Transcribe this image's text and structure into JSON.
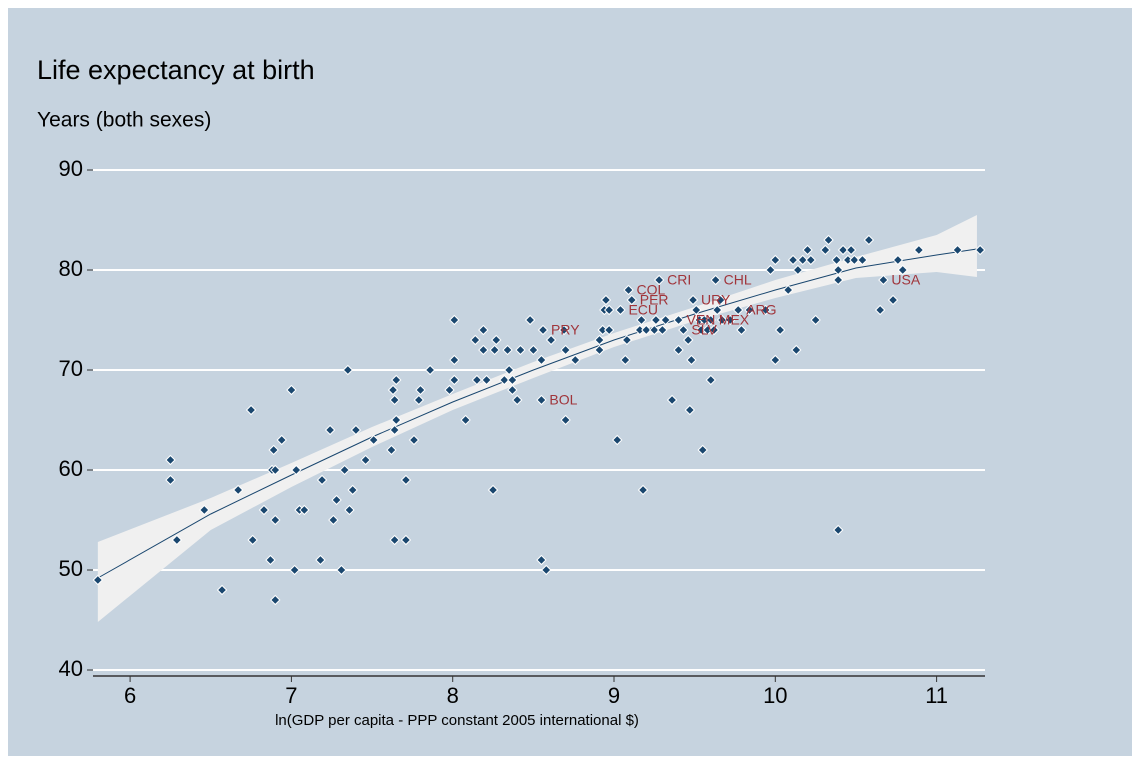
{
  "chart_data": {
    "type": "scatter",
    "title": "Life expectancy at birth",
    "subtitle": "Years (both sexes)",
    "x_label": "ln(GDP per capita - PPP constant 2005 international $)",
    "xlim": [
      5.77,
      11.3
    ],
    "xticks": [
      6,
      7,
      8,
      9,
      10,
      11
    ],
    "ylim": [
      40,
      90
    ],
    "yticks": [
      40,
      50,
      60,
      70,
      80,
      90
    ],
    "grid": true,
    "color": "#1a476f",
    "label_color": "#a0353b",
    "band_color": "#f0f0f0",
    "points": [
      {
        "x": 5.8,
        "y": 49
      },
      {
        "x": 6.25,
        "y": 61
      },
      {
        "x": 6.25,
        "y": 59
      },
      {
        "x": 6.29,
        "y": 53
      },
      {
        "x": 6.46,
        "y": 56
      },
      {
        "x": 6.57,
        "y": 48
      },
      {
        "x": 6.67,
        "y": 58
      },
      {
        "x": 6.75,
        "y": 66
      },
      {
        "x": 6.76,
        "y": 53
      },
      {
        "x": 6.83,
        "y": 56
      },
      {
        "x": 6.87,
        "y": 51
      },
      {
        "x": 6.89,
        "y": 62
      },
      {
        "x": 6.88,
        "y": 60
      },
      {
        "x": 6.9,
        "y": 60
      },
      {
        "x": 6.9,
        "y": 55
      },
      {
        "x": 6.9,
        "y": 47
      },
      {
        "x": 6.94,
        "y": 63
      },
      {
        "x": 7.0,
        "y": 68
      },
      {
        "x": 7.02,
        "y": 50
      },
      {
        "x": 7.03,
        "y": 60
      },
      {
        "x": 7.05,
        "y": 56
      },
      {
        "x": 7.08,
        "y": 56
      },
      {
        "x": 7.19,
        "y": 59
      },
      {
        "x": 7.18,
        "y": 51
      },
      {
        "x": 7.24,
        "y": 64
      },
      {
        "x": 7.26,
        "y": 55
      },
      {
        "x": 7.28,
        "y": 57
      },
      {
        "x": 7.31,
        "y": 50
      },
      {
        "x": 7.33,
        "y": 60
      },
      {
        "x": 7.35,
        "y": 70
      },
      {
        "x": 7.36,
        "y": 56
      },
      {
        "x": 7.38,
        "y": 58
      },
      {
        "x": 7.4,
        "y": 64
      },
      {
        "x": 7.46,
        "y": 61
      },
      {
        "x": 7.51,
        "y": 63
      },
      {
        "x": 7.62,
        "y": 62
      },
      {
        "x": 7.63,
        "y": 68
      },
      {
        "x": 7.64,
        "y": 53
      },
      {
        "x": 7.65,
        "y": 69
      },
      {
        "x": 7.64,
        "y": 64
      },
      {
        "x": 7.65,
        "y": 65
      },
      {
        "x": 7.64,
        "y": 67
      },
      {
        "x": 7.71,
        "y": 59
      },
      {
        "x": 7.71,
        "y": 53
      },
      {
        "x": 7.76,
        "y": 63
      },
      {
        "x": 7.79,
        "y": 67
      },
      {
        "x": 7.8,
        "y": 68
      },
      {
        "x": 7.86,
        "y": 70
      },
      {
        "x": 7.98,
        "y": 68
      },
      {
        "x": 8.01,
        "y": 75
      },
      {
        "x": 8.01,
        "y": 69
      },
      {
        "x": 8.01,
        "y": 71
      },
      {
        "x": 8.08,
        "y": 65
      },
      {
        "x": 8.14,
        "y": 73
      },
      {
        "x": 8.15,
        "y": 69
      },
      {
        "x": 8.19,
        "y": 74
      },
      {
        "x": 8.19,
        "y": 72
      },
      {
        "x": 8.21,
        "y": 69
      },
      {
        "x": 8.26,
        "y": 72
      },
      {
        "x": 8.27,
        "y": 73
      },
      {
        "x": 8.25,
        "y": 58
      },
      {
        "x": 8.32,
        "y": 69
      },
      {
        "x": 8.34,
        "y": 72
      },
      {
        "x": 8.35,
        "y": 70
      },
      {
        "x": 8.37,
        "y": 68
      },
      {
        "x": 8.4,
        "y": 67
      },
      {
        "x": 8.37,
        "y": 69
      },
      {
        "x": 8.42,
        "y": 72
      },
      {
        "x": 8.48,
        "y": 75
      },
      {
        "x": 8.5,
        "y": 72
      },
      {
        "x": 8.55,
        "y": 71
      },
      {
        "x": 8.55,
        "y": 67,
        "label": "BOL"
      },
      {
        "x": 8.56,
        "y": 74,
        "label": "PRY"
      },
      {
        "x": 8.55,
        "y": 51
      },
      {
        "x": 8.58,
        "y": 50
      },
      {
        "x": 8.61,
        "y": 73
      },
      {
        "x": 8.69,
        "y": 74
      },
      {
        "x": 8.7,
        "y": 72
      },
      {
        "x": 8.7,
        "y": 65
      },
      {
        "x": 8.76,
        "y": 71
      },
      {
        "x": 8.91,
        "y": 72
      },
      {
        "x": 8.91,
        "y": 73
      },
      {
        "x": 8.93,
        "y": 74
      },
      {
        "x": 8.94,
        "y": 76
      },
      {
        "x": 8.95,
        "y": 77
      },
      {
        "x": 8.97,
        "y": 74
      },
      {
        "x": 8.97,
        "y": 76
      },
      {
        "x": 9.02,
        "y": 63
      },
      {
        "x": 9.04,
        "y": 76,
        "label": "ECU"
      },
      {
        "x": 9.07,
        "y": 71
      },
      {
        "x": 9.08,
        "y": 73
      },
      {
        "x": 9.09,
        "y": 78,
        "label": "COL"
      },
      {
        "x": 9.11,
        "y": 77,
        "label": "PER"
      },
      {
        "x": 9.17,
        "y": 75
      },
      {
        "x": 9.16,
        "y": 74
      },
      {
        "x": 9.18,
        "y": 58
      },
      {
        "x": 9.2,
        "y": 74
      },
      {
        "x": 9.25,
        "y": 74
      },
      {
        "x": 9.26,
        "y": 75
      },
      {
        "x": 9.28,
        "y": 79,
        "label": "CRI"
      },
      {
        "x": 9.3,
        "y": 74
      },
      {
        "x": 9.32,
        "y": 75
      },
      {
        "x": 9.36,
        "y": 67
      },
      {
        "x": 9.4,
        "y": 72
      },
      {
        "x": 9.4,
        "y": 75,
        "label": "VEN"
      },
      {
        "x": 9.43,
        "y": 74,
        "label": "SLV"
      },
      {
        "x": 9.46,
        "y": 73
      },
      {
        "x": 9.47,
        "y": 66
      },
      {
        "x": 9.48,
        "y": 71
      },
      {
        "x": 9.49,
        "y": 77,
        "label": "URY"
      },
      {
        "x": 9.51,
        "y": 76
      },
      {
        "x": 9.53,
        "y": 75
      },
      {
        "x": 9.54,
        "y": 74
      },
      {
        "x": 9.55,
        "y": 62
      },
      {
        "x": 9.56,
        "y": 75
      },
      {
        "x": 9.58,
        "y": 74
      },
      {
        "x": 9.6,
        "y": 69
      },
      {
        "x": 9.6,
        "y": 75,
        "label": "MEX"
      },
      {
        "x": 9.62,
        "y": 74
      },
      {
        "x": 9.63,
        "y": 79,
        "label": "CHL"
      },
      {
        "x": 9.64,
        "y": 76
      },
      {
        "x": 9.66,
        "y": 77
      },
      {
        "x": 9.67,
        "y": 75
      },
      {
        "x": 9.72,
        "y": 75
      },
      {
        "x": 9.77,
        "y": 76,
        "label": "ARG"
      },
      {
        "x": 9.79,
        "y": 74
      },
      {
        "x": 9.84,
        "y": 76
      },
      {
        "x": 9.94,
        "y": 76
      },
      {
        "x": 9.97,
        "y": 80
      },
      {
        "x": 10.0,
        "y": 81
      },
      {
        "x": 10.0,
        "y": 71
      },
      {
        "x": 10.03,
        "y": 74
      },
      {
        "x": 10.08,
        "y": 78
      },
      {
        "x": 10.11,
        "y": 81
      },
      {
        "x": 10.14,
        "y": 80
      },
      {
        "x": 10.13,
        "y": 72
      },
      {
        "x": 10.17,
        "y": 81
      },
      {
        "x": 10.2,
        "y": 82
      },
      {
        "x": 10.22,
        "y": 81
      },
      {
        "x": 10.25,
        "y": 75
      },
      {
        "x": 10.31,
        "y": 82
      },
      {
        "x": 10.33,
        "y": 83
      },
      {
        "x": 10.38,
        "y": 81
      },
      {
        "x": 10.39,
        "y": 80
      },
      {
        "x": 10.39,
        "y": 79
      },
      {
        "x": 10.39,
        "y": 54
      },
      {
        "x": 10.42,
        "y": 82
      },
      {
        "x": 10.45,
        "y": 81
      },
      {
        "x": 10.47,
        "y": 82
      },
      {
        "x": 10.49,
        "y": 81
      },
      {
        "x": 10.54,
        "y": 81
      },
      {
        "x": 10.58,
        "y": 83
      },
      {
        "x": 10.65,
        "y": 76
      },
      {
        "x": 10.67,
        "y": 79,
        "label": "USA"
      },
      {
        "x": 10.73,
        "y": 77
      },
      {
        "x": 10.76,
        "y": 81
      },
      {
        "x": 10.79,
        "y": 80
      },
      {
        "x": 10.89,
        "y": 82
      },
      {
        "x": 11.13,
        "y": 82
      },
      {
        "x": 11.27,
        "y": 82
      }
    ],
    "fit": {
      "x": [
        5.8,
        6.5,
        7,
        7.5,
        8,
        8.5,
        9,
        9.5,
        10,
        10.5,
        11,
        11.25
      ],
      "values": [
        49.2,
        55.6,
        59.5,
        63.3,
        66.8,
        70,
        73,
        75.6,
        78,
        80.2,
        81.5,
        82.1
      ],
      "lower": [
        44.8,
        54,
        58.3,
        62.3,
        66,
        69.2,
        72.3,
        74.9,
        77.2,
        79.2,
        79.8,
        79.3
      ],
      "upper": [
        52.8,
        57.2,
        60.7,
        64.3,
        67.6,
        70.8,
        73.7,
        76.3,
        79,
        81.3,
        83.5,
        85.5
      ]
    }
  }
}
